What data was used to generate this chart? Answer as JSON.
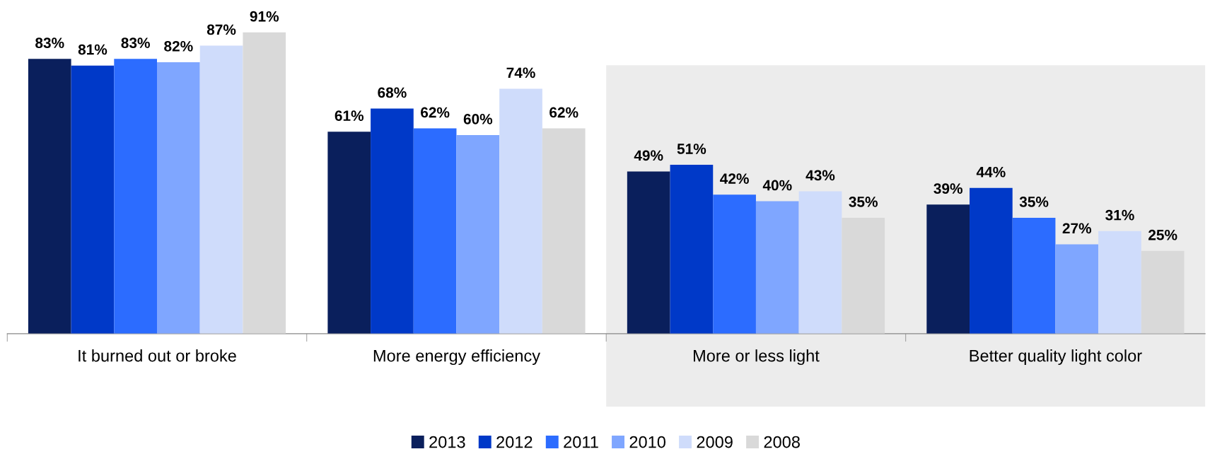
{
  "chart_data": {
    "type": "bar",
    "categories": [
      "It burned out or broke",
      "More energy efficiency",
      "More or less light",
      "Better quality light color"
    ],
    "series": [
      {
        "name": "2013",
        "color": "#0a1f5c",
        "values": [
          83,
          61,
          49,
          39
        ],
        "value_labels": [
          "83%",
          "61%",
          "49%",
          "39%"
        ]
      },
      {
        "name": "2012",
        "color": "#0039c8",
        "values": [
          81,
          68,
          51,
          44
        ],
        "value_labels": [
          "81%",
          "68%",
          "51%",
          "44%"
        ]
      },
      {
        "name": "2011",
        "color": "#2c6cff",
        "values": [
          83,
          62,
          42,
          35
        ],
        "value_labels": [
          "83%",
          "62%",
          "42%",
          "35%"
        ]
      },
      {
        "name": "2010",
        "color": "#7fa6ff",
        "values": [
          82,
          60,
          40,
          27
        ],
        "value_labels": [
          "82%",
          "60%",
          "40%",
          "27%"
        ]
      },
      {
        "name": "2009",
        "color": "#cfdcfb",
        "values": [
          87,
          74,
          43,
          31
        ],
        "value_labels": [
          "87%",
          "74%",
          "43%",
          "31%"
        ]
      },
      {
        "name": "2008",
        "color": "#d9d9d9",
        "values": [
          91,
          62,
          35,
          25
        ],
        "value_labels": [
          "91%",
          "62%",
          "35%",
          "25%"
        ]
      }
    ],
    "legend": "bottom",
    "grid": false
  }
}
